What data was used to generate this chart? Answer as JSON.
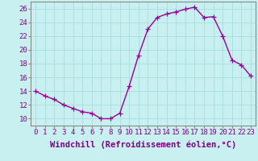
{
  "hours": [
    0,
    1,
    2,
    3,
    4,
    5,
    6,
    7,
    8,
    9,
    10,
    11,
    12,
    13,
    14,
    15,
    16,
    17,
    18,
    19,
    20,
    21,
    22,
    23
  ],
  "values": [
    14.0,
    13.3,
    12.8,
    12.0,
    11.5,
    11.0,
    10.8,
    10.0,
    10.0,
    10.8,
    14.7,
    19.2,
    23.0,
    24.7,
    25.2,
    25.5,
    25.9,
    26.2,
    24.7,
    24.8,
    22.0,
    18.5,
    17.8,
    16.2
  ],
  "line_color": "#990099",
  "marker": "+",
  "marker_size": 4,
  "bg_color": "#c8f0f0",
  "grid_color": "#aadddd",
  "xlabel": "Windchill (Refroidissement éolien,°C)",
  "xlabel_fontsize": 7.5,
  "tick_fontsize": 6.5,
  "ylim": [
    9,
    27
  ],
  "yticks": [
    10,
    12,
    14,
    16,
    18,
    20,
    22,
    24,
    26
  ],
  "xticks": [
    0,
    1,
    2,
    3,
    4,
    5,
    6,
    7,
    8,
    9,
    10,
    11,
    12,
    13,
    14,
    15,
    16,
    17,
    18,
    19,
    20,
    21,
    22,
    23
  ],
  "line_width": 1.0
}
